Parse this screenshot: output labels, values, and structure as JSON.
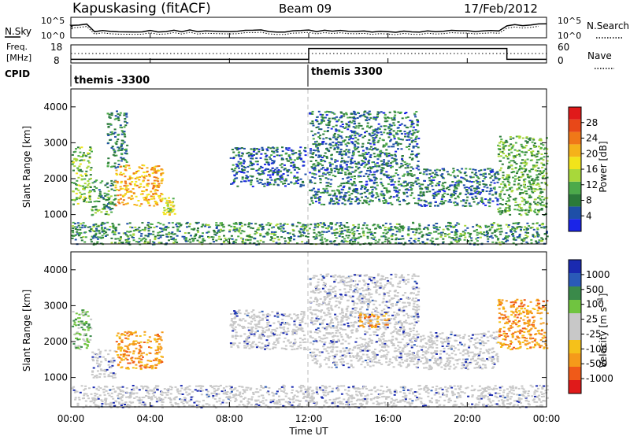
{
  "header": {
    "station": "Kapuskasing (fitACF)",
    "beam": "Beam 09",
    "date": "17/Feb/2012"
  },
  "noise_panel": {
    "left_label": "N.Sky",
    "right_label": "N.Search",
    "left_ticks": [
      "10^5",
      "10^0"
    ],
    "right_ticks": [
      "10^5",
      "10^0"
    ]
  },
  "freq_panel": {
    "left_label_line1": "Freq.",
    "left_label_line2": "[MHz]",
    "left_ticks": [
      "18",
      "8"
    ],
    "right_label": "Nave",
    "right_ticks": [
      "60",
      "0"
    ]
  },
  "cpid": {
    "label": "CPID",
    "segments": [
      {
        "text": "themis -3300",
        "start_ut": 0
      },
      {
        "text": "themis 3300",
        "start_ut": 12
      }
    ]
  },
  "colors": {
    "power": [
      "#1a24e8",
      "#1e4fa8",
      "#2b7a3a",
      "#4caa4a",
      "#a8d83a",
      "#f2e41a",
      "#f5b21a",
      "#f07818",
      "#e84818",
      "#e01a1a"
    ],
    "velocity": [
      "#e01a1a",
      "#f05a18",
      "#f59a1a",
      "#f5c11a",
      "#c8c8c8",
      "#c8c8c8",
      "#70c440",
      "#3a8a4a",
      "#2a5ab8",
      "#1a2ab0"
    ],
    "ground_scatter": "#c8c8c8"
  },
  "chart_data": [
    {
      "type": "heatmap",
      "name": "power",
      "ylabel": "Slant Range [km]",
      "ylim": [
        180,
        4500
      ],
      "y_ticks": [
        "1000",
        "2000",
        "3000",
        "4000"
      ],
      "xlim_ut": [
        0,
        24
      ],
      "colorbar_label": "Power [dB]",
      "colorbar_ticks": [
        "4",
        "8",
        "12",
        "16",
        "20",
        "24",
        "28"
      ],
      "colorbar_range": [
        0,
        30
      ],
      "regions": [
        {
          "ut": [
            0.0,
            1.0
          ],
          "range_km": [
            1300,
            2900
          ],
          "level": 10
        },
        {
          "ut": [
            1.0,
            2.2
          ],
          "range_km": [
            1000,
            2000
          ],
          "level": 8
        },
        {
          "ut": [
            1.8,
            2.8
          ],
          "range_km": [
            2300,
            3900
          ],
          "level": 6
        },
        {
          "ut": [
            2.2,
            4.6
          ],
          "range_km": [
            1250,
            2400
          ],
          "level": 18
        },
        {
          "ut": [
            4.6,
            5.2
          ],
          "range_km": [
            1000,
            1500
          ],
          "level": 14
        },
        {
          "ut": [
            8.0,
            11.8
          ],
          "range_km": [
            1800,
            2900
          ],
          "level": 4
        },
        {
          "ut": [
            12.0,
            17.5
          ],
          "range_km": [
            1300,
            3900
          ],
          "level": 5
        },
        {
          "ut": [
            17.5,
            21.5
          ],
          "range_km": [
            1250,
            2300
          ],
          "level": 5
        },
        {
          "ut": [
            21.5,
            24.0
          ],
          "range_km": [
            1000,
            3200
          ],
          "level": 9
        },
        {
          "ut": [
            0.0,
            24.0
          ],
          "range_km": [
            180,
            800
          ],
          "level": 7
        }
      ]
    },
    {
      "type": "heatmap",
      "name": "velocity",
      "xlabel": "Time UT",
      "x_ticks": [
        "00:00",
        "04:00",
        "08:00",
        "12:00",
        "16:00",
        "20:00",
        "00:00"
      ],
      "ylabel": "Slant Range [km]",
      "ylim": [
        180,
        4500
      ],
      "y_ticks": [
        "1000",
        "2000",
        "3000",
        "4000"
      ],
      "xlim_ut": [
        0,
        24
      ],
      "colorbar_label": "Velocity [m s^-1]",
      "colorbar_ticks": [
        "-1000",
        "-500",
        "-100",
        "-25",
        "25",
        "100",
        "500",
        "1000"
      ],
      "regions": [
        {
          "ut": [
            0.0,
            1.0
          ],
          "range_km": [
            1800,
            2900
          ],
          "value": 150
        },
        {
          "ut": [
            1.0,
            2.2
          ],
          "range_km": [
            1000,
            1800
          ],
          "value": 0
        },
        {
          "ut": [
            2.2,
            4.6
          ],
          "range_km": [
            1250,
            2300
          ],
          "value": -150
        },
        {
          "ut": [
            8.0,
            11.8
          ],
          "range_km": [
            1800,
            2900
          ],
          "value": 0
        },
        {
          "ut": [
            12.0,
            17.5
          ],
          "range_km": [
            1300,
            3900
          ],
          "value": 0
        },
        {
          "ut": [
            14.5,
            16.0
          ],
          "range_km": [
            2400,
            2800
          ],
          "value": -300
        },
        {
          "ut": [
            17.5,
            21.5
          ],
          "range_km": [
            1250,
            2300
          ],
          "value": 0
        },
        {
          "ut": [
            21.5,
            24.0
          ],
          "range_km": [
            1800,
            3200
          ],
          "value": -200
        },
        {
          "ut": [
            0.0,
            24.0
          ],
          "range_km": [
            180,
            800
          ],
          "value": 0
        }
      ]
    }
  ]
}
